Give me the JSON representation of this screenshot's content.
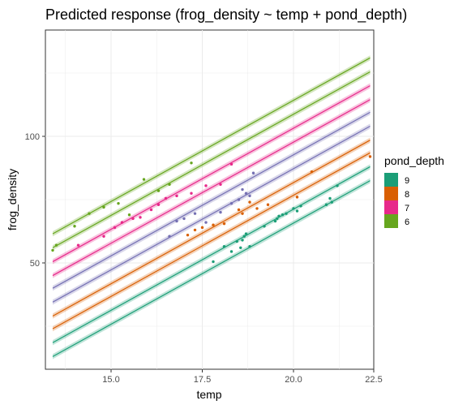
{
  "chart_data": {
    "type": "line",
    "title": "Predicted response (frog_density ~ temp + pond_depth)",
    "xlabel": "temp",
    "ylabel": "frog_density",
    "xlim": [
      13.2,
      22.2
    ],
    "ylim": [
      8,
      142
    ],
    "x_ticks": [
      15.0,
      17.5,
      20.0,
      22.5
    ],
    "x_tick_labels": [
      "15.0",
      "17.5",
      "20.0",
      "22.5"
    ],
    "y_ticks": [
      50,
      100
    ],
    "y_tick_labels": [
      "50",
      "100"
    ],
    "grid": true,
    "legend": {
      "title": "pond_depth",
      "position": "right",
      "entries": [
        {
          "label": "9",
          "color": "#1b9e77"
        },
        {
          "label": "8",
          "color": "#d95f02"
        },
        {
          "label": "7",
          "color": "#e7298a"
        },
        {
          "label": "6",
          "color": "#66a61e"
        }
      ]
    },
    "band_halfwidth": 1.0,
    "lines": [
      {
        "group": "9",
        "color": "#1b9e77",
        "x": [
          13.4,
          22.1
        ],
        "y": [
          13.0,
          82.5
        ]
      },
      {
        "group": "9",
        "color": "#1b9e77",
        "x": [
          13.4,
          22.1
        ],
        "y": [
          18.5,
          88.0
        ]
      },
      {
        "group": "8",
        "color": "#d95f02",
        "x": [
          13.4,
          22.1
        ],
        "y": [
          24.0,
          93.5
        ]
      },
      {
        "group": "8",
        "color": "#d95f02",
        "x": [
          13.4,
          22.1
        ],
        "y": [
          29.0,
          98.5
        ]
      },
      {
        "group": "7",
        "color": "#7570b3",
        "x": [
          13.4,
          22.1
        ],
        "y": [
          34.5,
          104.0
        ]
      },
      {
        "group": "7",
        "color": "#7570b3",
        "x": [
          13.4,
          22.1
        ],
        "y": [
          40.0,
          109.5
        ]
      },
      {
        "group": "7",
        "color": "#e7298a",
        "x": [
          13.4,
          22.1
        ],
        "y": [
          45.0,
          114.5
        ]
      },
      {
        "group": "7",
        "color": "#e7298a",
        "x": [
          13.4,
          22.1
        ],
        "y": [
          50.5,
          120.0
        ]
      },
      {
        "group": "6",
        "color": "#66a61e",
        "x": [
          13.4,
          22.1
        ],
        "y": [
          56.0,
          125.5
        ]
      },
      {
        "group": "6",
        "color": "#66a61e",
        "x": [
          13.4,
          22.1
        ],
        "y": [
          61.5,
          131.0
        ]
      }
    ],
    "points": [
      {
        "group": "9",
        "color": "#1b9e77",
        "x": [
          17.8,
          18.1,
          18.3,
          18.45,
          18.55,
          18.6,
          18.65,
          18.7,
          18.8,
          19.2,
          19.5,
          19.55,
          19.6,
          19.7,
          19.8,
          20.0,
          20.1,
          20.2,
          20.9,
          21.0,
          21.05,
          21.2
        ],
        "y": [
          50.5,
          56.5,
          54.5,
          58.5,
          56.0,
          59.0,
          60.5,
          61.5,
          56.5,
          64.5,
          66.5,
          67.5,
          68.5,
          69.0,
          69.5,
          71.5,
          70.5,
          72.5,
          73.0,
          75.5,
          74.0,
          80.5
        ]
      },
      {
        "group": "8",
        "color": "#d95f02",
        "x": [
          17.1,
          17.3,
          17.5,
          17.8,
          18.1,
          18.5,
          18.6,
          18.8,
          19.0,
          19.3,
          20.1,
          20.5,
          22.1
        ],
        "y": [
          61.0,
          63.0,
          64.0,
          65.0,
          65.5,
          71.0,
          69.5,
          74.0,
          71.5,
          73.0,
          76.0,
          86.0,
          92.0
        ]
      },
      {
        "group": "7",
        "color": "#7570b3",
        "x": [
          16.6,
          16.8,
          17.0,
          17.3,
          17.6,
          18.0,
          18.3,
          18.5,
          18.6,
          18.7,
          18.8,
          18.9
        ],
        "y": [
          60.5,
          66.5,
          67.5,
          69.5,
          66.0,
          70.0,
          73.5,
          75.0,
          79.0,
          77.5,
          76.5,
          85.5
        ]
      },
      {
        "group": "7",
        "color": "#e7298a",
        "x": [
          14.1,
          14.8,
          15.1,
          15.3,
          15.6,
          15.8,
          16.1,
          16.3,
          16.5,
          16.8,
          17.2,
          17.6,
          18.0,
          18.3
        ],
        "y": [
          57.0,
          60.5,
          64.0,
          66.0,
          67.5,
          68.0,
          71.0,
          73.0,
          75.5,
          76.5,
          77.5,
          80.5,
          81.0,
          89.0
        ]
      },
      {
        "group": "6",
        "color": "#66a61e",
        "x": [
          13.4,
          13.5,
          14.0,
          14.4,
          14.8,
          15.2,
          15.5,
          15.9,
          16.3,
          16.6,
          17.2
        ],
        "y": [
          55.0,
          57.0,
          64.5,
          69.5,
          72.0,
          73.5,
          69.0,
          83.0,
          78.5,
          81.0,
          89.5
        ]
      }
    ]
  }
}
